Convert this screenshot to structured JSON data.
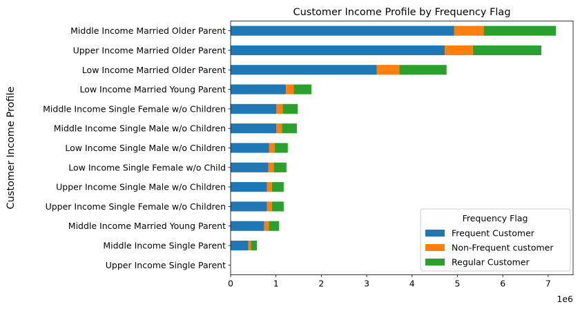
{
  "chart_data": {
    "type": "bar",
    "orientation": "horizontal",
    "stacked": true,
    "title": "Customer Income Profile by Frequency Flag",
    "xlabel": "",
    "ylabel": "Customer Income Profile",
    "x_scale_label": "1e6",
    "xlim": [
      0,
      7550000
    ],
    "xticks": [
      0,
      1000000,
      2000000,
      3000000,
      4000000,
      5000000,
      6000000,
      7000000
    ],
    "xtick_labels": [
      "0",
      "1",
      "2",
      "3",
      "4",
      "5",
      "6",
      "7"
    ],
    "grid": false,
    "legend_position": "lower-right",
    "legend_title": "Frequency Flag",
    "categories": [
      "Middle Income Married Older Parent",
      "Upper Income Married Older Parent",
      "Low Income Married Older Parent",
      "Low Income Married Young Parent",
      "Middle Income Single Female w/o Children",
      "Middle Income Single Male w/o Children",
      "Low Income Single Male w/o Children",
      "Low Income Single Female w/o Child",
      "Upper Income Single Male w/o Children",
      "Upper Income Single Female w/o Children",
      "Middle Income Married Young Parent",
      "Middle Income Single Parent",
      "Upper Income Single Parent"
    ],
    "series": [
      {
        "name": "Frequent Customer",
        "color": "#1f77b4",
        "values": [
          4930000,
          4720000,
          3220000,
          1220000,
          1010000,
          1010000,
          850000,
          830000,
          800000,
          800000,
          740000,
          390000,
          0
        ]
      },
      {
        "name": "Non-Frequent customer",
        "color": "#ff7f0e",
        "values": [
          650000,
          620000,
          500000,
          170000,
          140000,
          120000,
          120000,
          120000,
          110000,
          110000,
          100000,
          60000,
          0
        ]
      },
      {
        "name": "Regular Customer",
        "color": "#2ca02c",
        "values": [
          1590000,
          1510000,
          1040000,
          390000,
          330000,
          330000,
          290000,
          280000,
          260000,
          260000,
          230000,
          130000,
          0
        ]
      }
    ]
  }
}
